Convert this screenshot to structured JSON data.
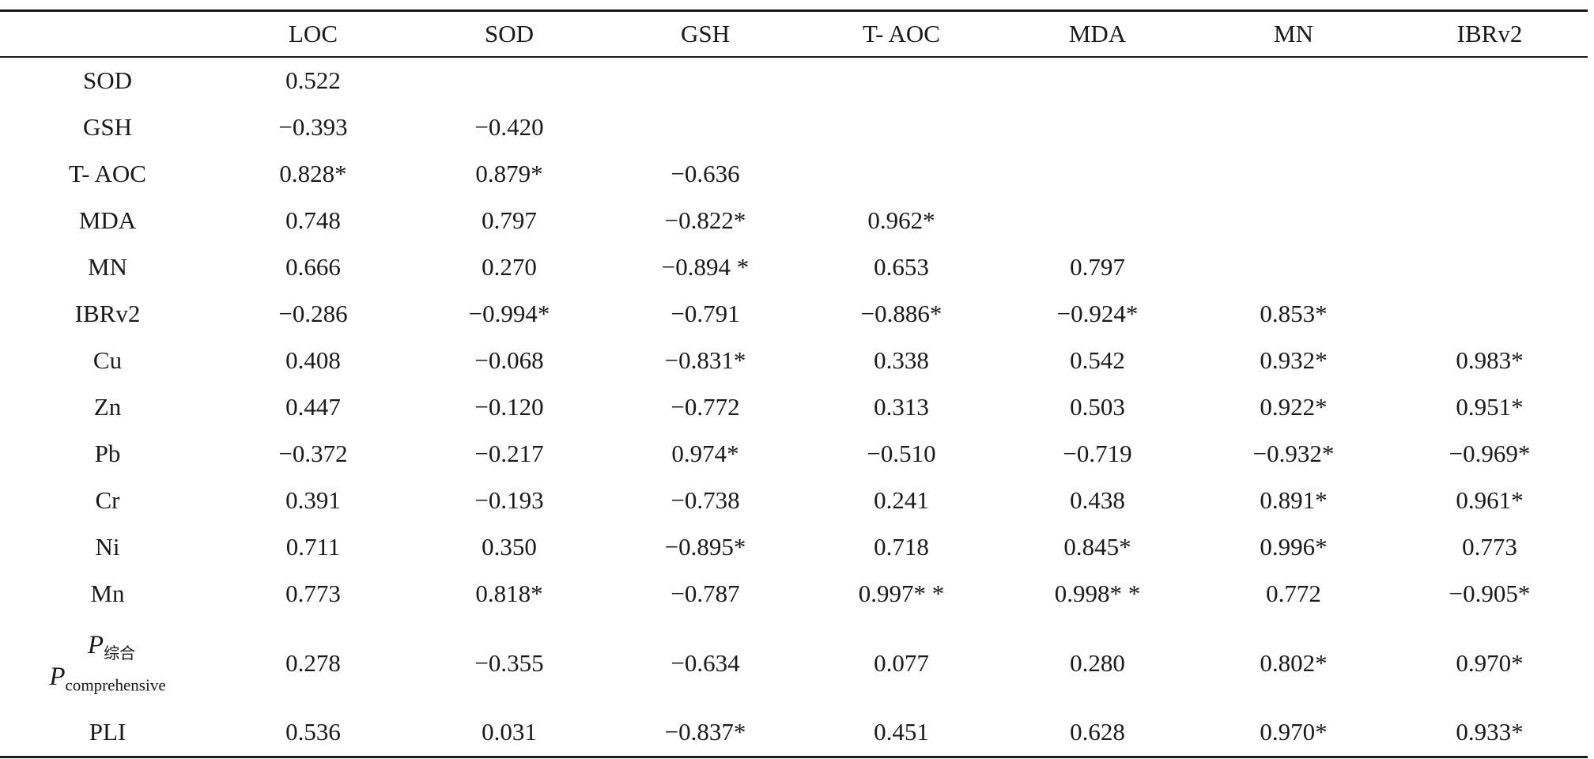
{
  "columns": [
    "",
    "LOC",
    "SOD",
    "GSH",
    "T- AOC",
    "MDA",
    "MN",
    "IBRv2"
  ],
  "rows": [
    {
      "label": "SOD",
      "values": [
        "0.522",
        "",
        "",
        "",
        "",
        "",
        ""
      ]
    },
    {
      "label": "GSH",
      "values": [
        "−0.393",
        "−0.420",
        "",
        "",
        "",
        "",
        ""
      ]
    },
    {
      "label": "T- AOC",
      "values": [
        "0.828*",
        "0.879*",
        "−0.636",
        "",
        "",
        "",
        ""
      ]
    },
    {
      "label": "MDA",
      "values": [
        "0.748",
        "0.797",
        "−0.822*",
        "0.962*",
        "",
        "",
        ""
      ]
    },
    {
      "label": "MN",
      "values": [
        "0.666",
        "0.270",
        "−0.894 *",
        "0.653",
        "0.797",
        "",
        ""
      ]
    },
    {
      "label": "IBRv2",
      "values": [
        "−0.286",
        "−0.994*",
        "−0.791",
        "−0.886*",
        "−0.924*",
        "0.853*",
        ""
      ]
    },
    {
      "label": "Cu",
      "values": [
        "0.408",
        "−0.068",
        "−0.831*",
        "0.338",
        "0.542",
        "0.932*",
        "0.983*"
      ]
    },
    {
      "label": "Zn",
      "values": [
        "0.447",
        "−0.120",
        "−0.772",
        "0.313",
        "0.503",
        "0.922*",
        "0.951*"
      ]
    },
    {
      "label": "Pb",
      "values": [
        "−0.372",
        "−0.217",
        "0.974*",
        "−0.510",
        "−0.719",
        "−0.932*",
        "−0.969*"
      ]
    },
    {
      "label": "Cr",
      "values": [
        "0.391",
        "−0.193",
        "−0.738",
        "0.241",
        "0.438",
        "0.891*",
        "0.961*"
      ]
    },
    {
      "label": "Ni",
      "values": [
        "0.711",
        "0.350",
        "−0.895*",
        "0.718",
        "0.845*",
        "0.996*",
        "0.773"
      ]
    },
    {
      "label": "Mn",
      "values": [
        "0.773",
        "0.818*",
        "−0.787",
        "0.997* *",
        "0.998* *",
        "0.772",
        "−0.905*"
      ]
    },
    {
      "label_parts": {
        "symbol": "P",
        "sub_cn": "综合",
        "sub_en": "comprehensive"
      },
      "values": [
        "0.278",
        "−0.355",
        "−0.634",
        "0.077",
        "0.280",
        "0.802*",
        "0.970*"
      ]
    },
    {
      "label": "PLI",
      "values": [
        "0.536",
        "0.031",
        "−0.837*",
        "0.451",
        "0.628",
        "0.970*",
        "0.933*"
      ]
    }
  ]
}
